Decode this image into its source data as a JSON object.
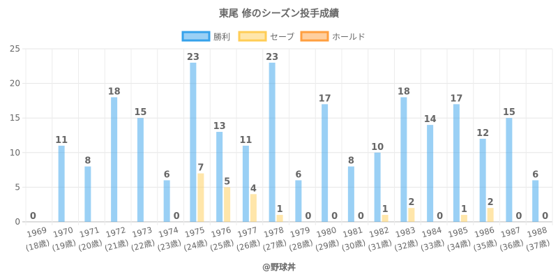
{
  "chart_data": {
    "type": "bar",
    "title": "東尾 修のシーズン投手成績",
    "categories": [
      "1969",
      "1970",
      "1971",
      "1972",
      "1973",
      "1974",
      "1975",
      "1976",
      "1977",
      "1978",
      "1979",
      "1980",
      "1981",
      "1982",
      "1983",
      "1984",
      "1985",
      "1986",
      "1987",
      "1988"
    ],
    "sublabels": [
      "(18歳)",
      "(19歳)",
      "(20歳)",
      "(21歳)",
      "(22歳)",
      "(23歳)",
      "(24歳)",
      "(25歳)",
      "(26歳)",
      "(27歳)",
      "(28歳)",
      "(29歳)",
      "(30歳)",
      "(31歳)",
      "(32歳)",
      "(33歳)",
      "(34歳)",
      "(35歳)",
      "(36歳)",
      "(37歳)"
    ],
    "series": [
      {
        "name": "勝利",
        "color": "#36a2eb",
        "values": [
          0,
          11,
          8,
          18,
          15,
          6,
          23,
          13,
          11,
          23,
          6,
          17,
          8,
          10,
          18,
          14,
          17,
          12,
          15,
          6
        ]
      },
      {
        "name": "セーブ",
        "color": "#ffcd56",
        "values": [
          null,
          null,
          null,
          null,
          null,
          0,
          7,
          5,
          4,
          1,
          0,
          0,
          0,
          1,
          2,
          0,
          1,
          2,
          0,
          0
        ]
      },
      {
        "name": "ホールド",
        "color": "#ff9f40",
        "values": [
          null,
          null,
          null,
          null,
          null,
          null,
          null,
          null,
          null,
          null,
          null,
          null,
          null,
          null,
          null,
          null,
          null,
          null,
          null,
          null
        ]
      }
    ],
    "yticks": [
      "0",
      "5",
      "10",
      "15",
      "20",
      "25"
    ],
    "ylim": [
      0,
      25
    ],
    "legend": "top",
    "grid": true
  },
  "footer": "@野球丼"
}
